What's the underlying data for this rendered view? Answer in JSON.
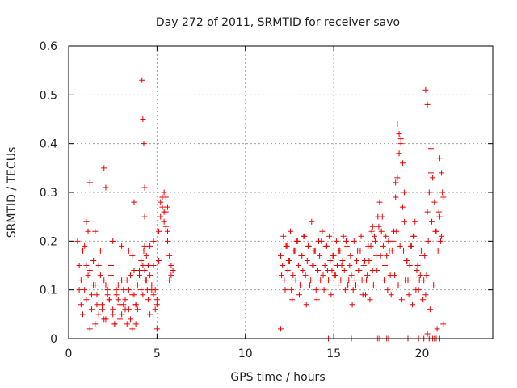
{
  "chart_data": {
    "type": "scatter",
    "title": "Day 272 of 2011, SRMTID for receiver savo",
    "xlabel": "GPS time / hours",
    "ylabel": "SRMTID / TECUs",
    "xlim": [
      0,
      24
    ],
    "ylim": [
      0,
      0.6
    ],
    "xticks": [
      0,
      5,
      10,
      15,
      20
    ],
    "yticks": [
      0,
      0.1,
      0.2,
      0.3,
      0.4,
      0.5,
      0.6
    ],
    "xtick_labels": [
      "0",
      "5",
      "10",
      "15",
      "20"
    ],
    "ytick_labels": [
      "0",
      "0.1",
      "0.2",
      "0.3",
      "0.4",
      "0.5",
      "0.6"
    ],
    "grid": true,
    "marker": "+",
    "color": "#ee0000",
    "series": [
      {
        "name": "SRMTID",
        "x": [
          0.5,
          0.6,
          0.7,
          0.8,
          0.9,
          1.0,
          1.1,
          1.2,
          1.3,
          1.4,
          1.5,
          1.6,
          1.7,
          1.8,
          1.9,
          2.0,
          2.1,
          2.2,
          2.3,
          2.4,
          2.5,
          2.6,
          2.7,
          2.8,
          2.9,
          3.0,
          3.1,
          3.2,
          3.3,
          3.4,
          3.5,
          3.6,
          3.7,
          3.8,
          3.9,
          4.0,
          4.1,
          4.2,
          4.25,
          4.3,
          4.35,
          4.4,
          4.45,
          4.5,
          4.6,
          4.7,
          4.8,
          4.9,
          5.0,
          5.1,
          5.2,
          5.3,
          5.4,
          5.5,
          5.6,
          5.7,
          5.8,
          5.9,
          0.6,
          0.8,
          1.0,
          1.2,
          1.4,
          1.6,
          1.8,
          2.0,
          2.2,
          2.4,
          2.6,
          2.8,
          3.0,
          3.2,
          3.4,
          3.6,
          3.8,
          4.0,
          4.2,
          4.4,
          4.6,
          4.8,
          5.0,
          5.2,
          5.4,
          5.6,
          5.8,
          0.7,
          0.9,
          1.1,
          1.3,
          1.5,
          1.7,
          1.9,
          2.1,
          2.3,
          2.5,
          2.7,
          2.9,
          3.1,
          3.3,
          3.5,
          3.7,
          3.9,
          4.1,
          4.3,
          4.5,
          4.7,
          4.9,
          5.1,
          5.3,
          5.5,
          5.7,
          1.2,
          2.0,
          2.1,
          3.7,
          4.15,
          4.2,
          4.25,
          4.3,
          5.4,
          5.5,
          5.6,
          4.3,
          1.0,
          1.5,
          2.5,
          3.0,
          3.4,
          3.6,
          3.8,
          4.6,
          4.8,
          5.0,
          12.0,
          12.1,
          12.2,
          12.3,
          12.4,
          12.5,
          12.6,
          12.7,
          12.8,
          12.9,
          13.0,
          13.1,
          13.2,
          13.3,
          13.4,
          13.5,
          13.6,
          13.7,
          13.8,
          13.9,
          14.0,
          14.1,
          14.2,
          14.3,
          14.4,
          14.5,
          14.6,
          14.7,
          14.8,
          14.9,
          15.0,
          15.1,
          15.2,
          15.3,
          15.4,
          15.5,
          15.6,
          15.7,
          15.8,
          15.9,
          16.0,
          16.1,
          16.2,
          16.3,
          16.4,
          16.5,
          16.6,
          16.7,
          16.8,
          16.9,
          17.0,
          17.1,
          17.2,
          17.3,
          17.4,
          17.5,
          17.6,
          17.7,
          17.8,
          17.9,
          18.0,
          18.1,
          18.2,
          18.3,
          18.4,
          18.5,
          18.6,
          18.7,
          18.8,
          18.9,
          19.0,
          19.1,
          19.2,
          19.3,
          19.4,
          19.5,
          19.6,
          19.7,
          19.8,
          19.9,
          20.0,
          20.1,
          20.2,
          20.3,
          20.4,
          20.5,
          20.6,
          20.7,
          20.8,
          20.9,
          21.0,
          21.1,
          12.05,
          12.25,
          12.45,
          12.65,
          12.85,
          13.05,
          13.25,
          13.45,
          13.65,
          13.85,
          14.05,
          14.25,
          14.45,
          14.65,
          14.85,
          15.05,
          15.25,
          15.45,
          15.65,
          15.85,
          16.05,
          16.25,
          16.45,
          16.65,
          16.85,
          17.05,
          17.25,
          17.45,
          17.65,
          17.85,
          18.05,
          18.25,
          18.45,
          18.65,
          18.85,
          19.05,
          19.25,
          19.45,
          19.65,
          19.85,
          20.05,
          20.25,
          20.45,
          20.65,
          20.85,
          21.05,
          12.15,
          12.35,
          12.55,
          12.75,
          12.95,
          13.15,
          13.35,
          13.55,
          13.75,
          13.95,
          14.15,
          14.35,
          14.55,
          14.75,
          14.95,
          15.15,
          15.35,
          15.55,
          15.75,
          15.95,
          16.15,
          16.35,
          16.55,
          16.75,
          16.95,
          17.15,
          17.35,
          17.55,
          17.75,
          17.95,
          18.15,
          18.35,
          18.55,
          18.75,
          18.95,
          19.15,
          19.35,
          19.55,
          19.75,
          19.95,
          20.15,
          20.35,
          20.55,
          20.75,
          20.95,
          21.15,
          12.0,
          14.7,
          16.0,
          17.4,
          17.5,
          17.6,
          18.0,
          18.1,
          19.2,
          19.8,
          20.1,
          20.3,
          20.4,
          20.5,
          20.6,
          20.7,
          20.8,
          21.0,
          21.2,
          18.6,
          18.7,
          18.8,
          18.9,
          20.2,
          20.3,
          20.5,
          21.0,
          21.1,
          18.5,
          19.0,
          17.2,
          21.2
        ],
        "y": [
          0.2,
          0.15,
          0.12,
          0.18,
          0.1,
          0.08,
          0.22,
          0.14,
          0.06,
          0.16,
          0.11,
          0.09,
          0.05,
          0.13,
          0.07,
          0.12,
          0.04,
          0.1,
          0.08,
          0.15,
          0.06,
          0.03,
          0.09,
          0.11,
          0.07,
          0.05,
          0.1,
          0.08,
          0.12,
          0.06,
          0.04,
          0.09,
          0.14,
          0.07,
          0.11,
          0.13,
          0.16,
          0.15,
          0.18,
          0.14,
          0.12,
          0.17,
          0.1,
          0.08,
          0.13,
          0.11,
          0.09,
          0.1,
          0.07,
          0.22,
          0.25,
          0.27,
          0.24,
          0.26,
          0.2,
          0.17,
          0.15,
          0.14,
          0.1,
          0.05,
          0.15,
          0.02,
          0.11,
          0.07,
          0.18,
          0.04,
          0.09,
          0.13,
          0.03,
          0.08,
          0.12,
          0.06,
          0.1,
          0.02,
          0.07,
          0.14,
          0.09,
          0.12,
          0.05,
          0.15,
          0.08,
          0.28,
          0.26,
          0.22,
          0.13,
          0.07,
          0.19,
          0.13,
          0.09,
          0.03,
          0.15,
          0.06,
          0.11,
          0.08,
          0.05,
          0.1,
          0.04,
          0.07,
          0.03,
          0.13,
          0.09,
          0.06,
          0.1,
          0.19,
          0.15,
          0.1,
          0.06,
          0.16,
          0.29,
          0.23,
          0.12,
          0.32,
          0.35,
          0.31,
          0.28,
          0.53,
          0.45,
          0.4,
          0.31,
          0.3,
          0.29,
          0.27,
          0.25,
          0.24,
          0.22,
          0.2,
          0.19,
          0.18,
          0.17,
          0.03,
          0.19,
          0.2,
          0.02,
          0.17,
          0.15,
          0.12,
          0.19,
          0.14,
          0.16,
          0.1,
          0.13,
          0.18,
          0.2,
          0.15,
          0.11,
          0.17,
          0.21,
          0.13,
          0.16,
          0.19,
          0.12,
          0.15,
          0.18,
          0.1,
          0.14,
          0.17,
          0.2,
          0.13,
          0.15,
          0.19,
          0.12,
          0.16,
          0.14,
          0.17,
          0.13,
          0.15,
          0.18,
          0.12,
          0.16,
          0.14,
          0.2,
          0.11,
          0.15,
          0.13,
          0.1,
          0.12,
          0.16,
          0.14,
          0.18,
          0.12,
          0.15,
          0.09,
          0.13,
          0.16,
          0.19,
          0.14,
          0.21,
          0.17,
          0.25,
          0.28,
          0.22,
          0.19,
          0.15,
          0.17,
          0.2,
          0.13,
          0.18,
          0.22,
          0.29,
          0.33,
          0.38,
          0.4,
          0.27,
          0.24,
          0.16,
          0.12,
          0.15,
          0.19,
          0.21,
          0.24,
          0.14,
          0.1,
          0.13,
          0.17,
          0.12,
          0.09,
          0.26,
          0.3,
          0.34,
          0.33,
          0.28,
          0.22,
          0.18,
          0.25,
          0.21,
          0.13,
          0.1,
          0.16,
          0.08,
          0.12,
          0.09,
          0.14,
          0.07,
          0.11,
          0.15,
          0.08,
          0.12,
          0.1,
          0.14,
          0.09,
          0.13,
          0.11,
          0.15,
          0.1,
          0.12,
          0.07,
          0.11,
          0.14,
          0.09,
          0.12,
          0.08,
          0.11,
          0.14,
          0.17,
          0.12,
          0.1,
          0.09,
          0.13,
          0.11,
          0.08,
          0.12,
          0.09,
          0.07,
          0.1,
          0.12,
          0.08,
          0.13,
          0.06,
          0.11,
          0.02,
          0.2,
          0.21,
          0.19,
          0.22,
          0.18,
          0.2,
          0.17,
          0.21,
          0.19,
          0.24,
          0.18,
          0.2,
          0.22,
          0.19,
          0.21,
          0.17,
          0.2,
          0.18,
          0.21,
          0.19,
          0.17,
          0.2,
          0.18,
          0.21,
          0.16,
          0.19,
          0.22,
          0.2,
          0.23,
          0.25,
          0.21,
          0.18,
          0.2,
          0.22,
          0.19,
          0.18,
          0.16,
          0.19,
          0.21,
          0.15,
          0.18,
          0.17,
          0.2,
          0.24,
          0.22,
          0.26,
          0.3,
          0.02,
          0.0,
          0.0,
          0.0,
          0.0,
          0.0,
          0.0,
          0.0,
          0.0,
          0.0,
          0.0,
          0.01,
          0.0,
          0.0,
          0.0,
          0.0,
          0.0,
          0.0,
          0.03,
          0.44,
          0.42,
          0.41,
          0.36,
          0.51,
          0.48,
          0.39,
          0.37,
          0.34,
          0.32,
          0.3,
          0.23,
          0.29
        ]
      }
    ]
  }
}
